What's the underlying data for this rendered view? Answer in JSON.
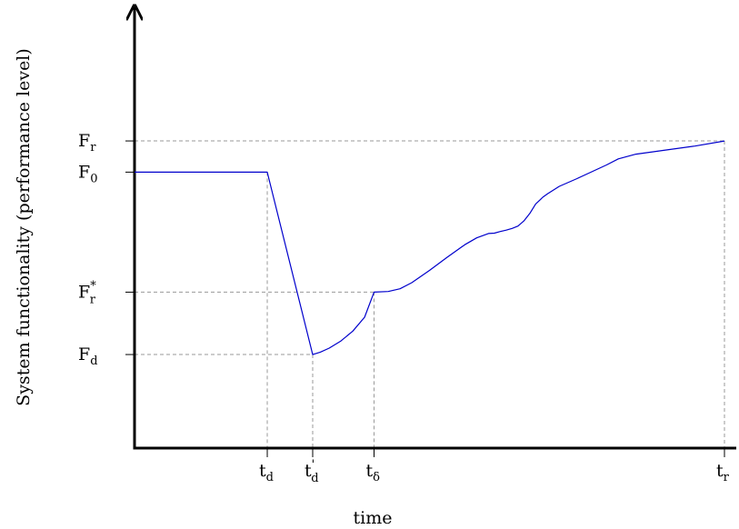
{
  "chart_data": {
    "type": "line",
    "title": "",
    "xlabel": "time",
    "ylabel": "System functionality (performance level)",
    "line_color": "#0000cc",
    "guide_color": "#999999",
    "axis_color": "#000000",
    "grid": false,
    "xlim": [
      0,
      100
    ],
    "ylim": [
      0,
      100
    ],
    "y_ticks": [
      {
        "key": "fr",
        "main": "F",
        "sub": "r",
        "sup": "",
        "value": 90.6
      },
      {
        "key": "f0",
        "main": "F",
        "sub": "0",
        "sup": "",
        "value": 81.4
      },
      {
        "key": "frs",
        "main": "F",
        "sub": "r",
        "sup": "*",
        "value": 46.0
      },
      {
        "key": "fd",
        "main": "F",
        "sub": "d",
        "sup": "",
        "value": 27.6
      }
    ],
    "x_ticks": [
      {
        "key": "td",
        "main": "t",
        "sub": "d",
        "sup": "",
        "value": 22.5
      },
      {
        "key": "tdp",
        "main": "t",
        "sub": "d",
        "sup": "'",
        "value": 30.2
      },
      {
        "key": "tdelta",
        "main": "t",
        "sub": "δ",
        "sup": "",
        "value": 40.6
      },
      {
        "key": "tr",
        "main": "t",
        "sub": "r",
        "sup": "",
        "value": 100
      }
    ],
    "series": [
      {
        "x": [
          0,
          22.5,
          30.2,
          31.5,
          33,
          35,
          37,
          39,
          40.6,
          43,
          45,
          47,
          50,
          53,
          56,
          58,
          60,
          61,
          62,
          63,
          64,
          65,
          66,
          67,
          68,
          68.8,
          69.2,
          70,
          72,
          75,
          80,
          82,
          85,
          90,
          95,
          100
        ],
        "y": [
          81.4,
          81.4,
          27.6,
          28.3,
          29.5,
          31.6,
          34.5,
          38.6,
          46.0,
          46.2,
          47.0,
          48.8,
          52.4,
          56.3,
          60.0,
          62.0,
          63.3,
          63.4,
          63.9,
          64.3,
          64.8,
          65.5,
          67.0,
          69.2,
          72.0,
          73.3,
          74.0,
          75.0,
          77.2,
          79.5,
          83.5,
          85.3,
          86.7,
          87.9,
          89.1,
          90.6
        ]
      }
    ]
  }
}
